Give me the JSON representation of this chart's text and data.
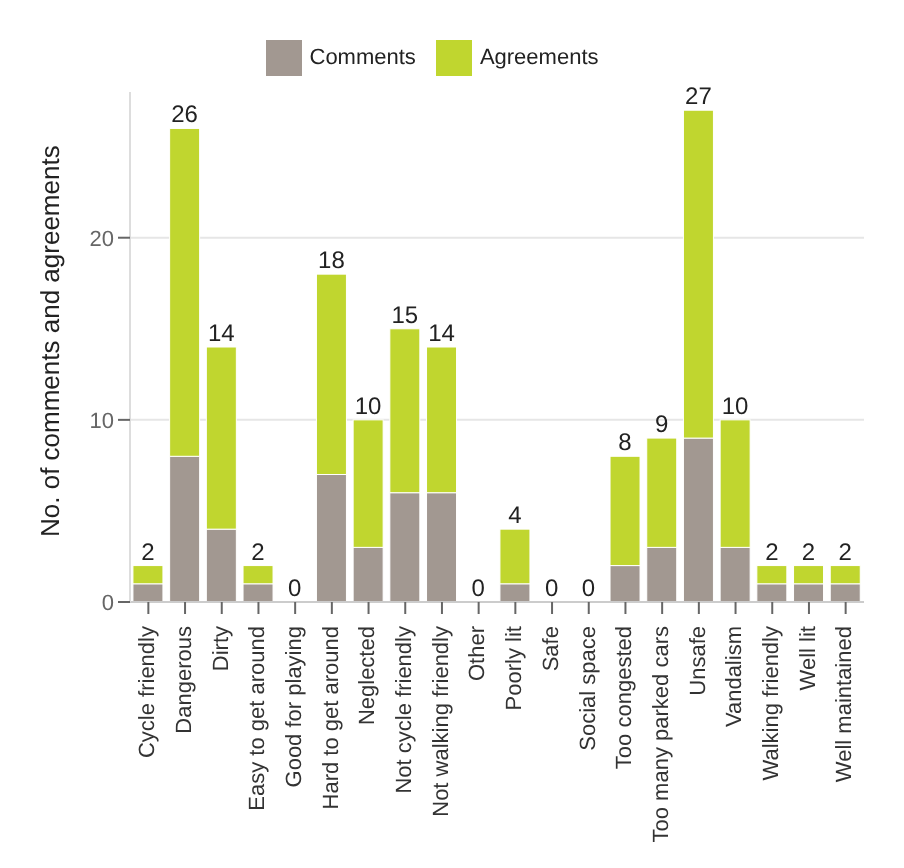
{
  "chart_data": {
    "type": "bar",
    "stacked": true,
    "ylabel": "No. of comments and agreements",
    "categories": [
      "Cycle friendly",
      "Dangerous",
      "Dirty",
      "Easy to get around",
      "Good for playing",
      "Hard to get around",
      "Neglected",
      "Not cycle friendly",
      "Not walking friendly",
      "Other",
      "Poorly lit",
      "Safe",
      "Social space",
      "Too congested",
      "Too many parked cars",
      "Unsafe",
      "Vandalism",
      "Walking friendly",
      "Well lit",
      "Well maintained"
    ],
    "series": [
      {
        "name": "Comments",
        "color": "#a29891",
        "values": [
          1,
          8,
          4,
          1,
          0,
          7,
          3,
          6,
          6,
          0,
          1,
          0,
          0,
          2,
          3,
          9,
          3,
          1,
          1,
          1
        ]
      },
      {
        "name": "Agreements",
        "color": "#c0d62f",
        "values": [
          1,
          18,
          10,
          1,
          0,
          11,
          7,
          9,
          8,
          0,
          3,
          0,
          0,
          6,
          6,
          18,
          7,
          1,
          1,
          1
        ]
      }
    ],
    "totals": [
      "2",
      "26",
      "14",
      "2",
      "0",
      "18",
      "10",
      "15",
      "14",
      "0",
      "4",
      "0",
      "0",
      "8",
      "9",
      "27",
      "10",
      "2",
      "2",
      "2"
    ],
    "ylim": [
      0,
      28
    ],
    "yticks": [
      0,
      10,
      20
    ],
    "grid": "y",
    "legend": "top"
  }
}
